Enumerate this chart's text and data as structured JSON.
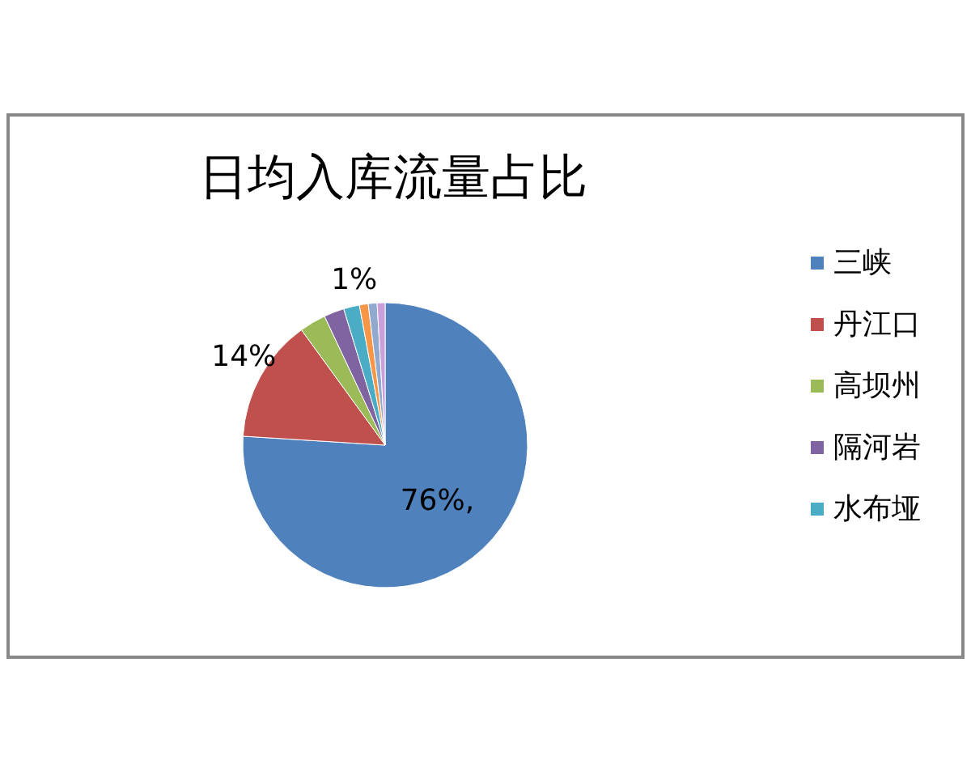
{
  "chart_data": {
    "type": "pie",
    "title": "日均入库流量占比",
    "categories": [
      "三峡",
      "丹江口",
      "高坝州",
      "隔河岩",
      "水布垭",
      null,
      null,
      null
    ],
    "values": [
      76,
      14,
      3,
      2.3,
      1.8,
      1,
      1,
      0.9
    ],
    "colors": [
      "#4f81bd",
      "#c0504d",
      "#9bbb59",
      "#8064a2",
      "#4bacc6",
      "#f79646",
      "#92a9cf",
      "#c9a0dc"
    ],
    "value_labels": [
      "76%,",
      "14%",
      null,
      null,
      null,
      "1%",
      null,
      null
    ],
    "legend": "right"
  }
}
